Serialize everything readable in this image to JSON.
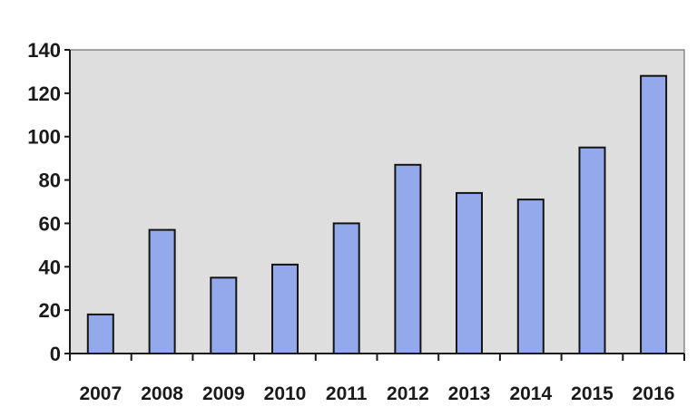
{
  "chart_data": {
    "type": "bar",
    "title": "",
    "xlabel": "",
    "ylabel": "",
    "categories": [
      "2007",
      "2008",
      "2009",
      "2010",
      "2011",
      "2012",
      "2013",
      "2014",
      "2015",
      "2016"
    ],
    "values": [
      18,
      57,
      35,
      41,
      60,
      87,
      74,
      71,
      95,
      128
    ],
    "ylim": [
      0,
      140
    ],
    "yticks": [
      0,
      20,
      40,
      60,
      80,
      100,
      120,
      140
    ],
    "grid": false,
    "legend": "none",
    "colors": {
      "bar_fill": "#93a9ec",
      "bar_stroke": "#141414",
      "plot_background": "#dedede",
      "axis": "#1a1a1a"
    }
  }
}
